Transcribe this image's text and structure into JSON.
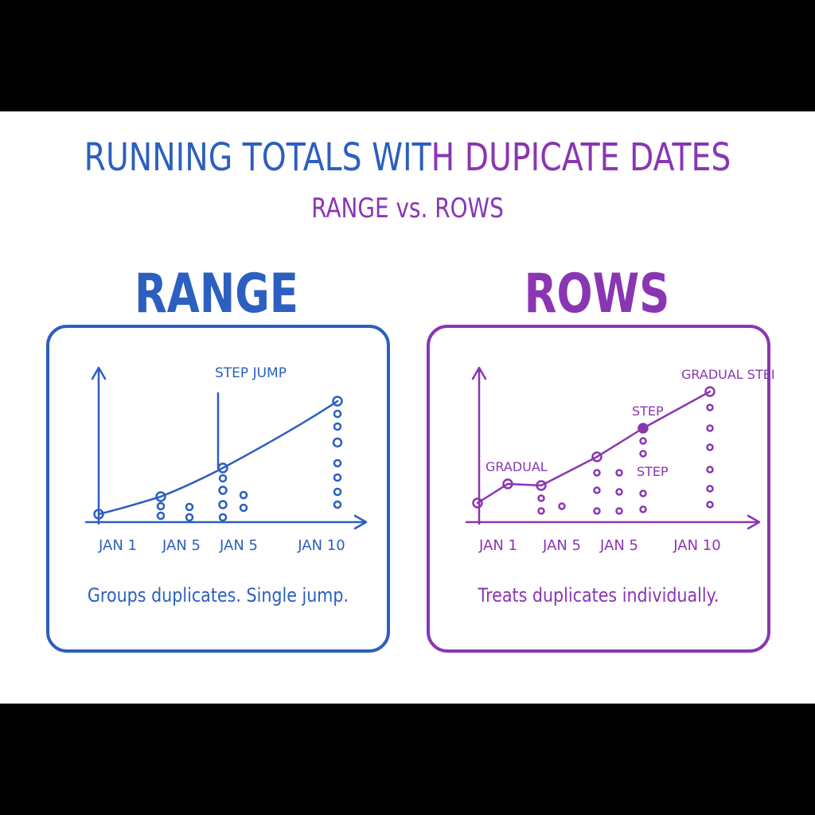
{
  "title": {
    "part1": "RUNNING TOTALS WIT",
    "part2": "H DUPICATE DATES"
  },
  "subtitle": "RANGE vs. ROWS",
  "colors": {
    "range": "#2c5fbf",
    "rows": "#8a36b3"
  },
  "range": {
    "heading": "RANGE",
    "caption": "Groups duplicates. Single jump.",
    "annotations": {
      "step_jump": "STEP JUMP"
    },
    "x_ticks": [
      "JAN 1",
      "JAN 5",
      "JAN 5",
      "JAN 10"
    ]
  },
  "rows": {
    "heading": "ROWS",
    "caption": "Treats duplicates individually.",
    "annotations": {
      "gradual": "GRADUAL",
      "step1": "STEP",
      "step2": "STEP",
      "gradual_step": "GRADUAL STEP"
    },
    "x_ticks": [
      "JAN 1",
      "JAN 5",
      "JAN 5",
      "JAN 10"
    ]
  }
}
